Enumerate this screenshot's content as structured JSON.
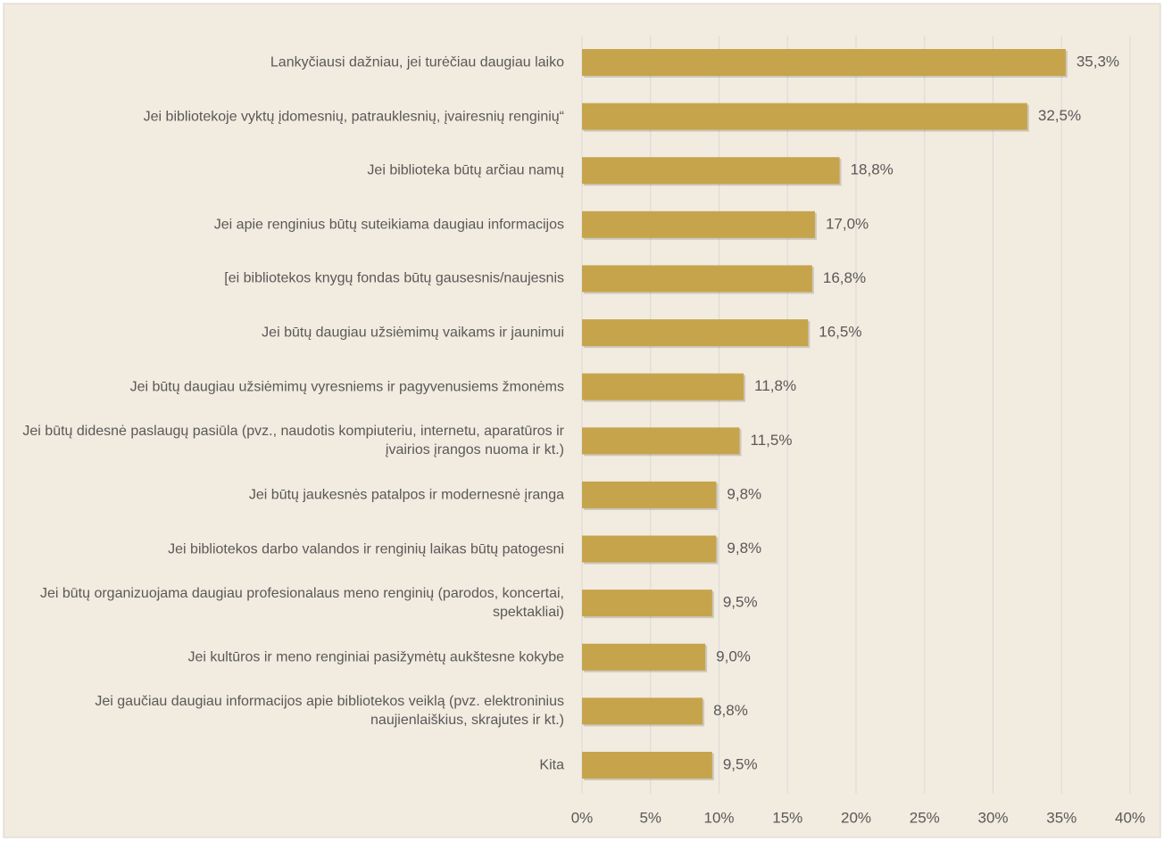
{
  "chart_data": {
    "type": "barh",
    "categories": [
      "Lankyčiausi dažniau, jei turėčiau daugiau laiko",
      "Jei bibliotekoje vyktų įdomesnių, patrauklesnių, įvairesnių renginių“",
      "Jei biblioteka būtų arčiau namų",
      "Jei apie renginius būtų suteikiama daugiau informacijos",
      "[ei bibliotekos knygų fondas būtų gausesnis/naujesnis",
      "Jei būtų daugiau užsiėmimų vaikams ir jaunimui",
      "Jei būtų daugiau užsiėmimų vyresniems ir pagyvenusiems žmonėms",
      "Jei būtų didesnė paslaugų pasiūla (pvz., naudotis kompiuteriu, internetu, aparatūros ir įvairios įrangos nuoma ir kt.)",
      "Jei būtų jaukesnės patalpos ir modernesnė įranga",
      "Jei bibliotekos darbo valandos ir renginių laikas būtų patogesni",
      "Jei būtų organizuojama daugiau profesionalaus meno renginių (parodos, koncertai, spektakliai)",
      "Jei kultūros ir meno renginiai pasižymėtų aukštesne kokybe",
      "Jei gaučiau daugiau informacijos apie bibliotekos veiklą (pvz. elektroninius naujienlaiškius, skrajutes ir kt.)",
      "Kita"
    ],
    "values": [
      35.3,
      32.5,
      18.8,
      17.0,
      16.8,
      16.5,
      11.8,
      11.5,
      9.8,
      9.8,
      9.5,
      9.0,
      8.8,
      9.5
    ],
    "value_labels": [
      "35,3%",
      "32,5%",
      "18,8%",
      "17,0%",
      "16,8%",
      "16,5%",
      "11,8%",
      "11,5%",
      "9,8%",
      "9,8%",
      "9,5%",
      "9,0%",
      "8,8%",
      "9,5%"
    ],
    "color": "#c6a44c",
    "xlim": [
      0,
      40
    ],
    "xticks": [
      {
        "value": 0,
        "label": "0%"
      },
      {
        "value": 5,
        "label": "5%"
      },
      {
        "value": 10,
        "label": "10%"
      },
      {
        "value": 15,
        "label": "15%"
      },
      {
        "value": 20,
        "label": "20%"
      },
      {
        "value": 25,
        "label": "25%"
      },
      {
        "value": 30,
        "label": "30%"
      },
      {
        "value": 35,
        "label": "35%"
      },
      {
        "value": 40,
        "label": "40%"
      }
    ],
    "grid": true
  }
}
